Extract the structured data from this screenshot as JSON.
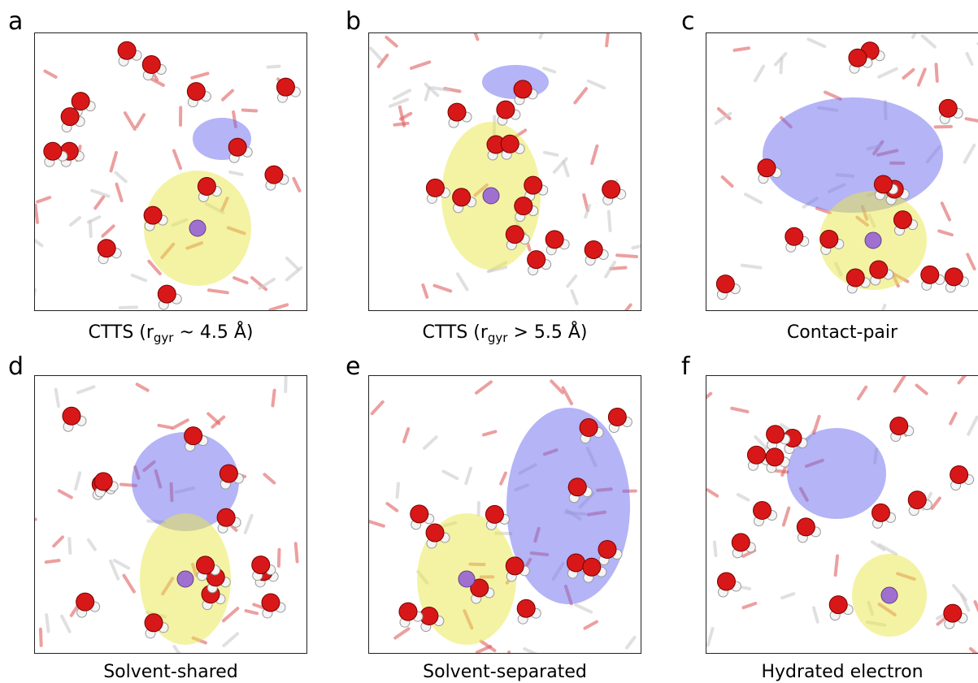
{
  "panels": [
    {
      "letter": "a",
      "caption": "CTTS (r",
      "caption_sub": "gyr",
      "caption_end": " ~ 4.5 Å)"
    },
    {
      "letter": "b",
      "caption": "CTTS (r",
      "caption_sub": "gyr",
      "caption_end": " > 5.5 Å)"
    },
    {
      "letter": "c",
      "caption": "Contact-pair"
    },
    {
      "letter": "d",
      "caption": "Solvent-shared"
    },
    {
      "letter": "e",
      "caption": "Solvent-separated"
    },
    {
      "letter": "f",
      "caption": "Hydrated electron"
    }
  ]
}
